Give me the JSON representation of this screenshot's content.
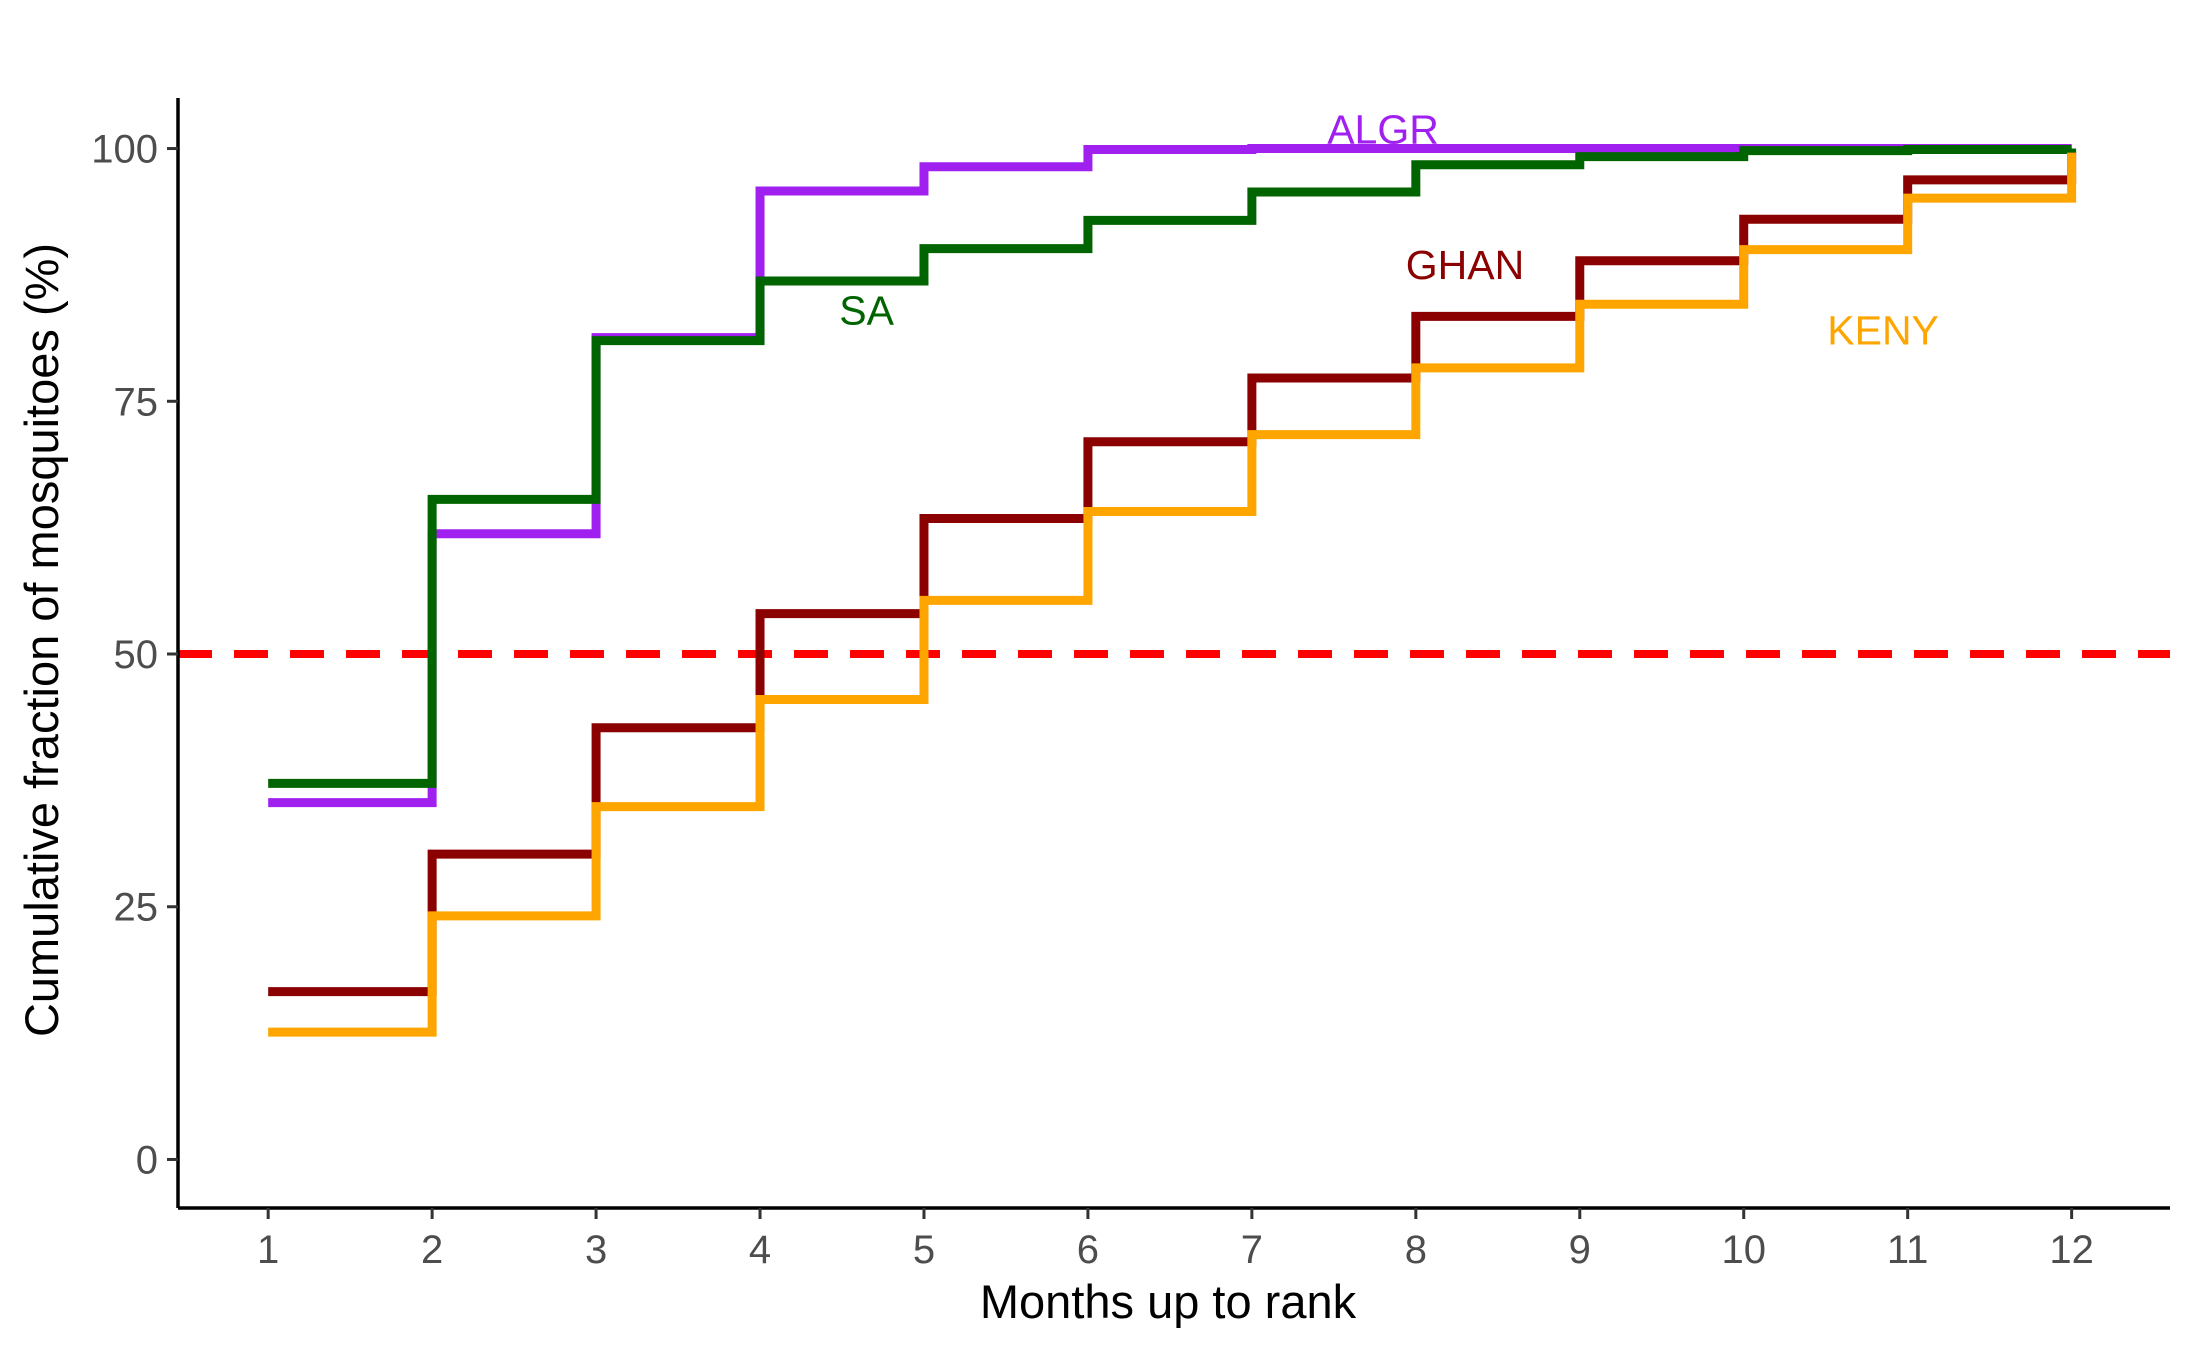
{
  "chart_data": {
    "type": "line",
    "step": true,
    "xlabel": "Months up to rank",
    "ylabel": "Cumulative fraction of mosquitoes (%)",
    "xlim": [
      0.45,
      12.6
    ],
    "ylim": [
      -4.8,
      105
    ],
    "x_ticks": [
      1,
      2,
      3,
      4,
      5,
      6,
      7,
      8,
      9,
      10,
      11,
      12
    ],
    "y_ticks": [
      0,
      25,
      50,
      75,
      100
    ],
    "grid": false,
    "legend": "none",
    "reference_line": {
      "y": 50,
      "color": "#ff0000",
      "style": "dashed"
    },
    "x": [
      1,
      2,
      3,
      4,
      5,
      6,
      7,
      8,
      9,
      10,
      11,
      12
    ],
    "series": [
      {
        "name": "ALGR",
        "color": "#a020f0",
        "label_at": [
          7.8,
          101.9
        ],
        "values": [
          35.3,
          61.9,
          81.3,
          95.8,
          98.2,
          99.9,
          100,
          100,
          100,
          100,
          100,
          100
        ]
      },
      {
        "name": "SA",
        "color": "#006400",
        "label_at": [
          4.65,
          84.0
        ],
        "values": [
          37.2,
          65.3,
          81.0,
          86.9,
          90.1,
          92.9,
          95.7,
          98.4,
          99.2,
          99.8,
          99.9,
          100
        ]
      },
      {
        "name": "GHAN",
        "color": "#8b0000",
        "label_at": [
          8.3,
          88.5
        ],
        "values": [
          16.6,
          30.2,
          42.7,
          54.0,
          63.4,
          71.0,
          77.3,
          83.4,
          88.9,
          93.0,
          96.9,
          99.6
        ]
      },
      {
        "name": "KENY",
        "color": "#ffa500",
        "label_at": [
          10.85,
          82.0
        ],
        "values": [
          12.6,
          24.1,
          34.9,
          45.5,
          55.3,
          64.1,
          71.7,
          78.3,
          84.6,
          90.0,
          95.1,
          99.6
        ]
      }
    ]
  }
}
